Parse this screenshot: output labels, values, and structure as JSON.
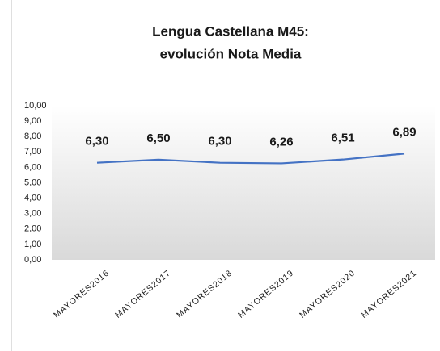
{
  "chart_data": {
    "type": "line",
    "title": [
      "Lengua Castellana M45:",
      "evolución Nota Media"
    ],
    "categories": [
      "MAYORES2016",
      "MAYORES2017",
      "MAYORES2018",
      "MAYORES2019",
      "MAYORES2020",
      "MAYORES2021"
    ],
    "series": [
      {
        "name": "Nota Media",
        "color": "#4472c4",
        "values": [
          6.3,
          6.5,
          6.3,
          6.26,
          6.51,
          6.89
        ],
        "value_labels": [
          "6,30",
          "6,50",
          "6,30",
          "6,26",
          "6,51",
          "6,89"
        ]
      }
    ],
    "ylim": [
      0,
      10
    ],
    "yticks": [
      {
        "value": 0,
        "label": "0,00"
      },
      {
        "value": 1,
        "label": "1,00"
      },
      {
        "value": 2,
        "label": "2,00"
      },
      {
        "value": 3,
        "label": "3,00"
      },
      {
        "value": 4,
        "label": "4,00"
      },
      {
        "value": 5,
        "label": "5,00"
      },
      {
        "value": 6,
        "label": "6,00"
      },
      {
        "value": 7,
        "label": "7,00"
      },
      {
        "value": 8,
        "label": "8,00"
      },
      {
        "value": 9,
        "label": "9,00"
      },
      {
        "value": 10,
        "label": "10,00"
      }
    ],
    "grid": false
  }
}
